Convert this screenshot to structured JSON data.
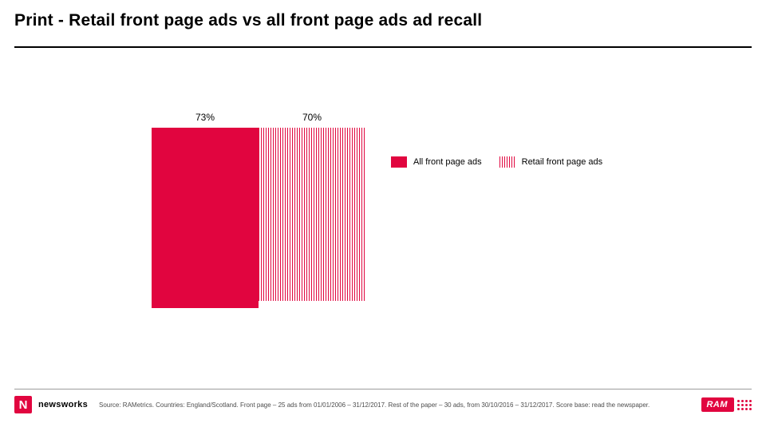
{
  "title": "Print - Retail front page ads vs all front page ads ad recall",
  "chart": {
    "type": "bar",
    "max": 100,
    "bars": [
      {
        "label": "73%",
        "value": 73,
        "fill": "solid",
        "color": "#e1053f"
      },
      {
        "label": "70%",
        "value": 70,
        "fill": "hatched",
        "color": "#e1053f"
      }
    ],
    "bar_colors": {
      "solid": "#e1053f",
      "hatched_fg": "#e1053f",
      "hatched_bg": "#ffffff"
    }
  },
  "legend": [
    {
      "label": "All front page ads",
      "swatch": "solid",
      "color": "#e1053f"
    },
    {
      "label": "Retail front page ads",
      "swatch": "hatched",
      "color": "#e1053f"
    }
  ],
  "footer": {
    "brand": "newsworks",
    "source": "Source: RAMetrics. Countries: England/Scotland. Front page – 25 ads from 01/01/2006 – 31/12/2017. Rest of the paper – 30 ads, from 30/10/2016 – 31/12/2017. Score base: read the newspaper.",
    "right_logo": "RAM"
  },
  "colors": {
    "accent": "#e1053f",
    "rule": "#000000",
    "rule_light": "#9c9c9c",
    "text": "#000000",
    "footer_text": "#4d4d4d",
    "background": "#ffffff"
  },
  "typography": {
    "title_fontsize": 21,
    "title_weight": 900,
    "bar_label_fontsize": 12,
    "legend_fontsize": 11,
    "source_fontsize": 8
  }
}
